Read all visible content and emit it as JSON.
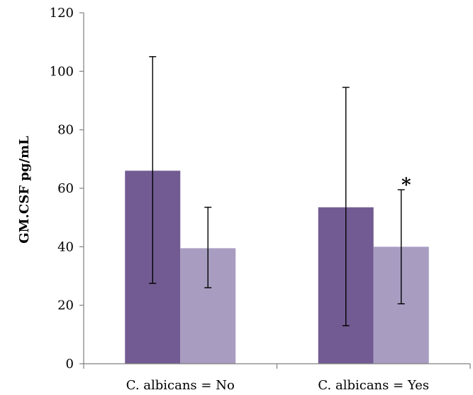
{
  "chart_data": {
    "type": "bar",
    "title": "",
    "xlabel": "",
    "ylabel": "GM.CSF pg/mL",
    "ylim": [
      0,
      120
    ],
    "yticks": [
      0,
      20,
      40,
      60,
      80,
      100,
      120
    ],
    "grid": false,
    "categories": [
      "C. albicans = No",
      "C. albicans = Yes"
    ],
    "series": [
      {
        "color": "#725b92",
        "values": [
          66,
          53.5
        ],
        "error_low": [
          27.5,
          13
        ],
        "error_high": [
          105,
          94.5
        ]
      },
      {
        "color": "#a89dc1",
        "values": [
          39.5,
          40
        ],
        "error_low": [
          26,
          20.5
        ],
        "error_high": [
          53.5,
          59.5
        ]
      }
    ],
    "annotations": [
      {
        "text": "*",
        "category": 1,
        "series": 1,
        "y": 61
      }
    ]
  }
}
